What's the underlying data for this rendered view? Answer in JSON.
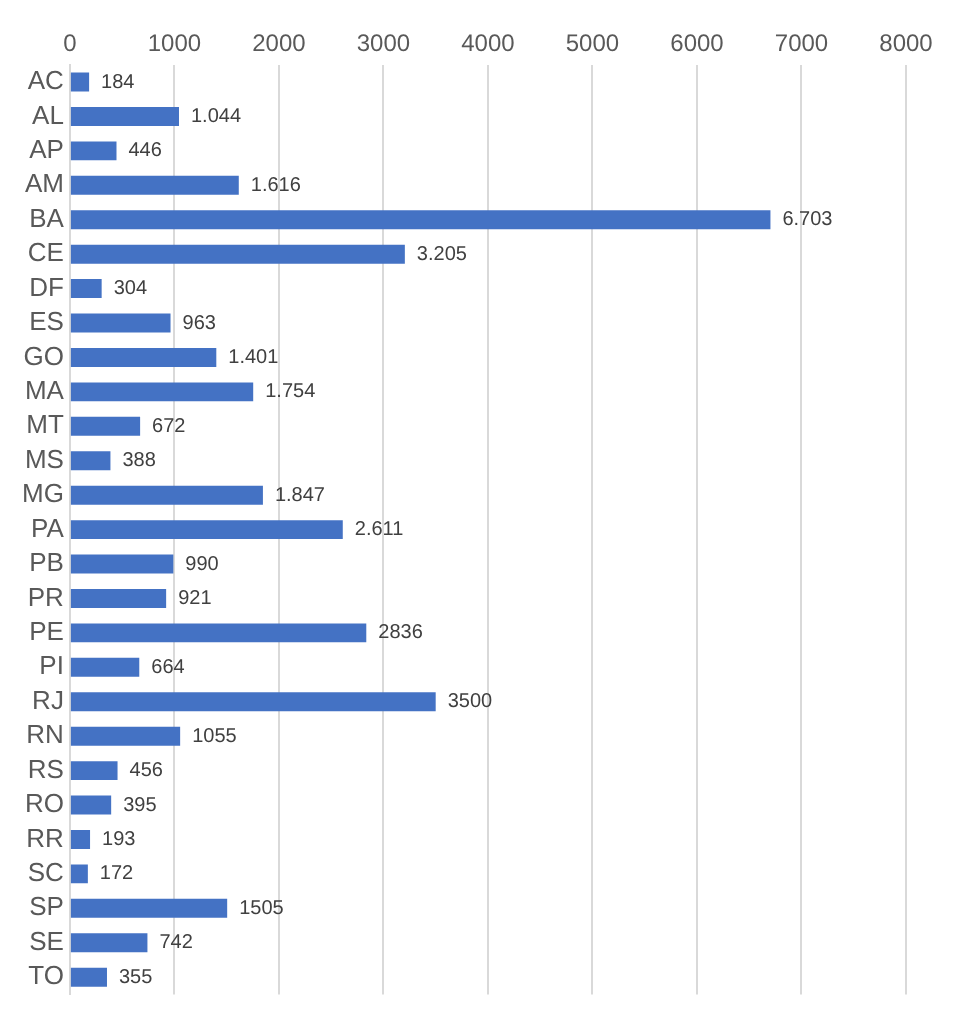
{
  "chart_data": {
    "type": "bar",
    "orientation": "horizontal",
    "categories": [
      "AC",
      "AL",
      "AP",
      "AM",
      "BA",
      "CE",
      "DF",
      "ES",
      "GO",
      "MA",
      "MT",
      "MS",
      "MG",
      "PA",
      "PB",
      "PR",
      "PE",
      "PI",
      "RJ",
      "RN",
      "RS",
      "RO",
      "RR",
      "SC",
      "SP",
      "SE",
      "TO"
    ],
    "values": [
      184,
      1044,
      446,
      1616,
      6703,
      3205,
      304,
      963,
      1401,
      1754,
      672,
      388,
      1847,
      2611,
      990,
      921,
      2836,
      664,
      3500,
      1055,
      456,
      395,
      193,
      172,
      1505,
      742,
      355
    ],
    "value_labels": [
      "184",
      "1.044",
      "446",
      "1.616",
      "6.703",
      "3.205",
      "304",
      "963",
      "1.401",
      "1.754",
      "672",
      "388",
      "1.847",
      "2.611",
      "990",
      "921",
      "2836",
      "664",
      "3500",
      "1055",
      "456",
      "395",
      "193",
      "172",
      "1505",
      "742",
      "355"
    ],
    "color": "#4472c4",
    "xlim": [
      0,
      8000
    ],
    "xticks": [
      0,
      1000,
      2000,
      3000,
      4000,
      5000,
      6000,
      7000,
      8000
    ],
    "grid": "x"
  }
}
